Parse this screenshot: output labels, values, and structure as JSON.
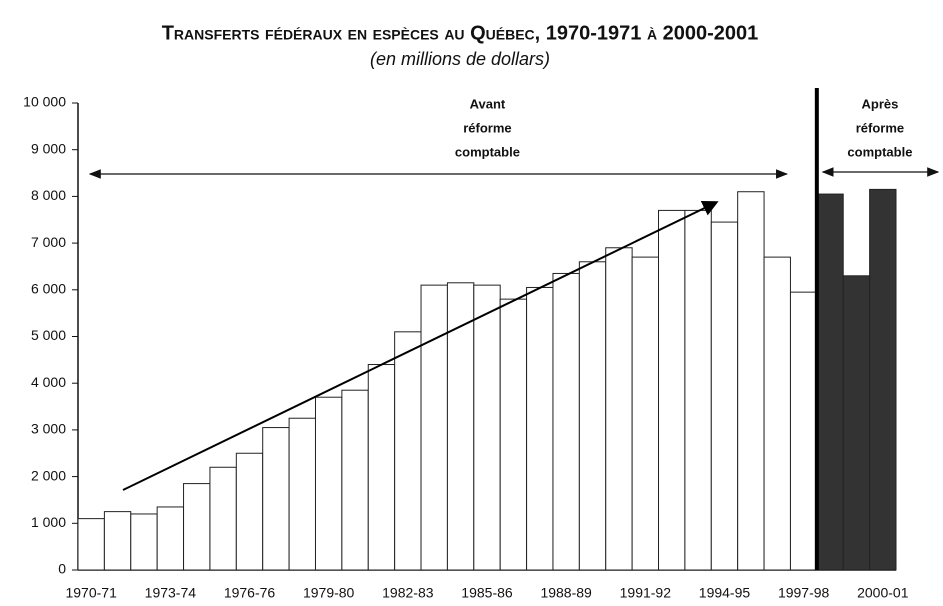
{
  "chart_data": {
    "type": "bar",
    "title": "Transferts fédéraux en espèces au Québec, 1970-1971 à 2000-2001",
    "subtitle": "(en millions de dollars)",
    "categories": [
      "1970-71",
      null,
      null,
      "1973-74",
      null,
      null,
      "1976-76",
      null,
      null,
      "1979-80",
      null,
      null,
      "1982-83",
      null,
      null,
      "1985-86",
      null,
      null,
      "1988-89",
      null,
      null,
      "1991-92",
      null,
      null,
      "1994-95",
      null,
      null,
      "1997-98",
      null,
      null,
      "2000-01"
    ],
    "values": [
      1100,
      1250,
      1200,
      1350,
      1850,
      2200,
      2500,
      3050,
      3250,
      3700,
      3850,
      4400,
      5100,
      6100,
      6150,
      6100,
      5800,
      6050,
      6350,
      6600,
      6900,
      6700,
      7700,
      7700,
      7450,
      8100,
      6700,
      5950,
      8050,
      6300,
      8150
    ],
    "colors": [
      "#ffffff",
      "#ffffff",
      "#ffffff",
      "#ffffff",
      "#ffffff",
      "#ffffff",
      "#ffffff",
      "#ffffff",
      "#ffffff",
      "#ffffff",
      "#ffffff",
      "#ffffff",
      "#ffffff",
      "#ffffff",
      "#ffffff",
      "#ffffff",
      "#ffffff",
      "#ffffff",
      "#ffffff",
      "#ffffff",
      "#ffffff",
      "#ffffff",
      "#ffffff",
      "#ffffff",
      "#ffffff",
      "#ffffff",
      "#ffffff",
      "#ffffff",
      "#333333",
      "#333333",
      "#333333"
    ],
    "ylim": [
      0,
      10000
    ],
    "yticks": [
      0,
      {
        "value": 1000,
        "label": "1 000"
      },
      {
        "value": 2000,
        "label": "2 000"
      },
      {
        "value": 3000,
        "label": "3 000"
      },
      {
        "value": 4000,
        "label": "4 000"
      },
      {
        "value": 5000,
        "label": "5 000"
      },
      {
        "value": 6000,
        "label": "6 000"
      },
      {
        "value": 7000,
        "label": "7 000"
      },
      {
        "value": 8000,
        "label": "8 000"
      },
      {
        "value": 9000,
        "label": "9 000"
      },
      {
        "value": 10000,
        "label": "10 000"
      }
    ],
    "annotations": [
      {
        "lines": [
          "Avant",
          "réforme",
          "comptable"
        ]
      },
      {
        "lines": [
          "Après",
          "réforme",
          "comptable"
        ]
      }
    ]
  }
}
